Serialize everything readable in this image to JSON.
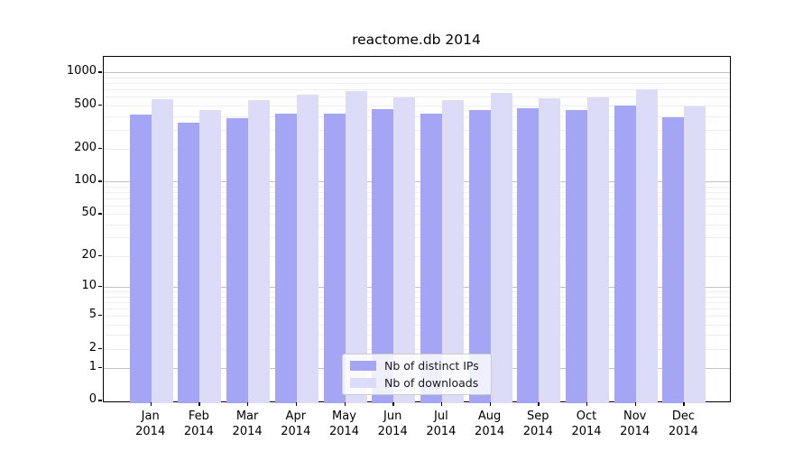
{
  "chart_data": {
    "type": "bar",
    "title": "reactome.db 2014",
    "categories": [
      "Jan 2014",
      "Feb 2014",
      "Mar 2014",
      "Apr 2014",
      "May 2014",
      "Jun 2014",
      "Jul 2014",
      "Aug 2014",
      "Sep 2014",
      "Oct 2014",
      "Nov 2014",
      "Dec 2014"
    ],
    "series": [
      {
        "name": "Nb of distinct IPs",
        "color": "#a5a5f6",
        "values": [
          410,
          345,
          380,
          420,
          420,
          465,
          420,
          450,
          470,
          455,
          500,
          390
        ]
      },
      {
        "name": "Nb of downloads",
        "color": "#dcdcf9",
        "values": [
          570,
          455,
          555,
          630,
          680,
          590,
          560,
          645,
          585,
          590,
          700,
          490
        ]
      }
    ],
    "yscale": "log1p",
    "ylim": [
      0,
      1390
    ],
    "y_ticks": [
      0,
      1,
      2,
      5,
      10,
      20,
      50,
      100,
      200,
      500,
      1000
    ],
    "y_tick_labels": [
      "0",
      "1",
      "2",
      "5",
      "10",
      "20",
      "50",
      "100",
      "200",
      "500",
      "1000"
    ],
    "y_major_gridlines": [
      1,
      10,
      100,
      1000
    ],
    "y_minor_gridlines": [
      2,
      3,
      4,
      5,
      6,
      7,
      8,
      9,
      20,
      30,
      40,
      50,
      60,
      70,
      80,
      90,
      200,
      300,
      400,
      500,
      600,
      700,
      800,
      900
    ],
    "xlabel": "",
    "ylabel": "",
    "grid": "horizontal",
    "legend_position": "lower center"
  }
}
